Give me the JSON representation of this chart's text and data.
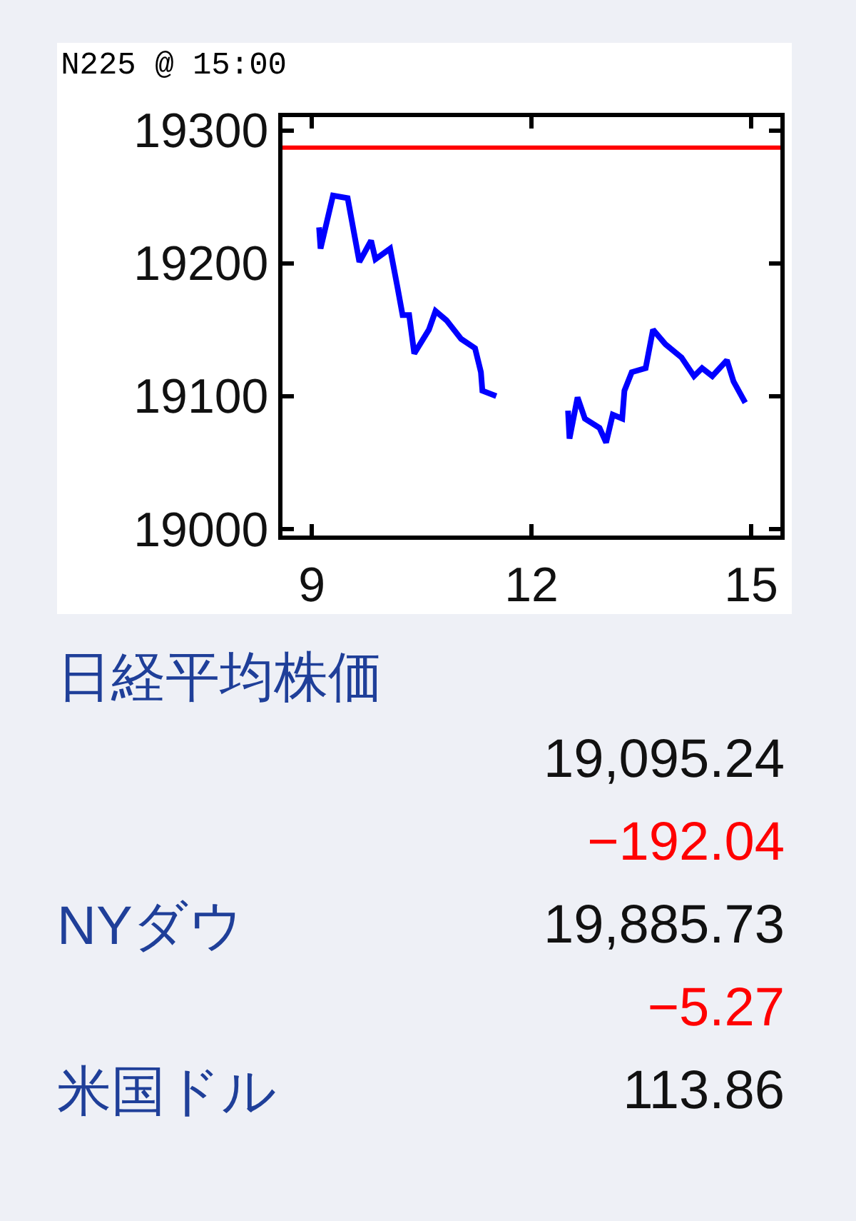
{
  "chart_data": {
    "type": "line",
    "title": "N225 @ 15:00",
    "x": [
      9.1,
      9.12,
      9.29,
      9.49,
      9.58,
      9.65,
      9.81,
      9.87,
      10.07,
      10.17,
      10.24,
      10.33,
      10.4,
      10.6,
      10.69,
      10.84,
      11.04,
      11.23,
      11.31,
      11.33,
      11.52,
      12.0,
      12.5,
      12.52,
      12.63,
      12.73,
      12.93,
      13.02,
      13.11,
      13.24,
      13.27,
      13.37,
      13.56,
      13.66,
      13.83,
      14.05,
      14.22,
      14.33,
      14.47,
      14.67,
      14.76,
      14.92
    ],
    "series": [
      {
        "color": "#0000ff",
        "values": [
          19227,
          19211,
          19251,
          19249,
          19222,
          19201,
          19217,
          19203,
          19211,
          19182,
          19161,
          19161,
          19132,
          19150,
          19164,
          19157,
          19143,
          19136,
          19118,
          19104,
          19100,
          null,
          19089,
          19068,
          19099,
          19083,
          19076,
          19065,
          19086,
          19083,
          19104,
          19118,
          19121,
          19150,
          19139,
          19129,
          19115,
          19121,
          19115,
          19127,
          19111,
          19095
        ]
      }
    ],
    "xlim": [
      8.6,
      15.4
    ],
    "ylim": [
      18995,
      19310
    ],
    "xticks": [
      9,
      12,
      15
    ],
    "yticks": [
      19000,
      19100,
      19200,
      19300
    ],
    "ref_lines": [
      {
        "axis": "y",
        "value": 19287,
        "color": "#ff0000"
      }
    ],
    "grid": false,
    "marker": "none",
    "line_style": "solid",
    "annotations": [
      "日経平均株価",
      "19,095.24",
      "−192.04",
      "NYダウ",
      "19,885.73",
      "−5.27",
      "米国ドル",
      "113.86"
    ]
  }
}
